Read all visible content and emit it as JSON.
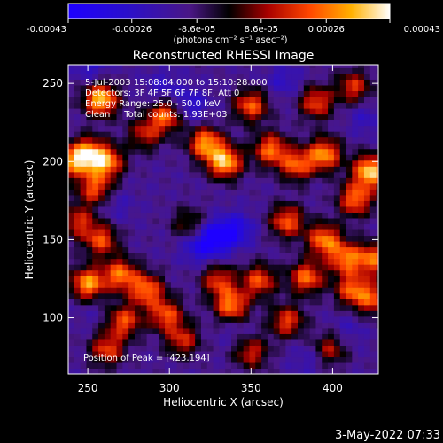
{
  "chart_data": {
    "type": "heatmap",
    "title": "Reconstructed RHESSI Image",
    "xlabel": "Heliocentric X (arcsec)",
    "ylabel": "Heliocentric Y (arcsec)",
    "xlim": [
      238,
      428
    ],
    "ylim": [
      64,
      262
    ],
    "xticks": [
      250,
      300,
      350,
      400
    ],
    "yticks": [
      100,
      150,
      200,
      250
    ],
    "colorbar": {
      "min": -0.00043,
      "max": 0.00043,
      "tick_values": [
        -0.00043,
        -0.00026,
        -8.6e-05,
        8.6e-05,
        0.00026,
        0.00043
      ],
      "tick_labels": [
        "-0.00043",
        "-0.00026",
        "-8.6e-05",
        "8.6e-05",
        "0.00026",
        "0.00043"
      ],
      "units": "(photons cm⁻² s⁻¹ asec⁻²)"
    },
    "annotations": [
      "5-Jul-2003 15:08:04.000 to 15:10:28.000",
      "Detectors: 3F 4F 5F 6F 7F 8F, Att 0",
      "Energy Range: 25.0 - 50.0 keV",
      "Clean     Total counts: 1.93E+03"
    ],
    "peak_label": "Position of Peak = [423,194]",
    "peak": [
      423,
      194
    ],
    "hotspots": [
      {
        "x": 258,
        "y": 240,
        "v": 0.00041
      },
      {
        "x": 250,
        "y": 205,
        "v": 0.00036
      },
      {
        "x": 262,
        "y": 200,
        "v": 0.0003
      },
      {
        "x": 254,
        "y": 183,
        "v": 0.00025
      },
      {
        "x": 240,
        "y": 200,
        "v": 0.00022
      },
      {
        "x": 298,
        "y": 230,
        "v": 0.0003
      },
      {
        "x": 285,
        "y": 218,
        "v": 0.00018
      },
      {
        "x": 350,
        "y": 236,
        "v": 0.00028
      },
      {
        "x": 390,
        "y": 238,
        "v": 0.00025
      },
      {
        "x": 413,
        "y": 248,
        "v": 0.00022
      },
      {
        "x": 334,
        "y": 200,
        "v": 0.0004
      },
      {
        "x": 322,
        "y": 212,
        "v": 0.00034
      },
      {
        "x": 362,
        "y": 208,
        "v": 0.0003
      },
      {
        "x": 378,
        "y": 198,
        "v": 0.00026
      },
      {
        "x": 395,
        "y": 205,
        "v": 0.00034
      },
      {
        "x": 423,
        "y": 194,
        "v": 0.00043
      },
      {
        "x": 414,
        "y": 176,
        "v": 0.0003
      },
      {
        "x": 372,
        "y": 162,
        "v": 0.00028
      },
      {
        "x": 395,
        "y": 150,
        "v": 0.00032
      },
      {
        "x": 408,
        "y": 138,
        "v": 0.00028
      },
      {
        "x": 258,
        "y": 150,
        "v": 0.00025
      },
      {
        "x": 244,
        "y": 162,
        "v": 0.0002
      },
      {
        "x": 270,
        "y": 128,
        "v": 0.0003
      },
      {
        "x": 250,
        "y": 122,
        "v": 0.00036
      },
      {
        "x": 286,
        "y": 118,
        "v": 0.0003
      },
      {
        "x": 272,
        "y": 98,
        "v": 0.00026
      },
      {
        "x": 298,
        "y": 102,
        "v": 0.00026
      },
      {
        "x": 262,
        "y": 80,
        "v": 0.00024
      },
      {
        "x": 308,
        "y": 86,
        "v": 0.0002
      },
      {
        "x": 338,
        "y": 108,
        "v": 0.00032
      },
      {
        "x": 330,
        "y": 124,
        "v": 0.00022
      },
      {
        "x": 355,
        "y": 124,
        "v": 0.00026
      },
      {
        "x": 372,
        "y": 98,
        "v": 0.00024
      },
      {
        "x": 384,
        "y": 126,
        "v": 0.0003
      },
      {
        "x": 412,
        "y": 118,
        "v": 0.00026
      },
      {
        "x": 425,
        "y": 138,
        "v": 0.00028
      },
      {
        "x": 425,
        "y": 112,
        "v": 0.00022
      },
      {
        "x": 398,
        "y": 80,
        "v": 0.00018
      },
      {
        "x": 350,
        "y": 78,
        "v": 0.0002
      },
      {
        "x": 312,
        "y": 160,
        "v": 0.00012
      }
    ],
    "coldspots": [
      {
        "x": 330,
        "y": 152,
        "v": -0.00038
      },
      {
        "x": 318,
        "y": 146,
        "v": -0.00028
      },
      {
        "x": 342,
        "y": 157,
        "v": -0.00026
      },
      {
        "x": 312,
        "y": 236,
        "v": -0.00026
      },
      {
        "x": 296,
        "y": 248,
        "v": -0.0002
      },
      {
        "x": 252,
        "y": 262,
        "v": -0.00022
      },
      {
        "x": 370,
        "y": 252,
        "v": -0.0002
      },
      {
        "x": 420,
        "y": 228,
        "v": -0.00018
      },
      {
        "x": 268,
        "y": 172,
        "v": -0.00016
      },
      {
        "x": 410,
        "y": 92,
        "v": -0.00016
      },
      {
        "x": 386,
        "y": 74,
        "v": -0.00018
      },
      {
        "x": 340,
        "y": 92,
        "v": -0.00014
      },
      {
        "x": 252,
        "y": 104,
        "v": -0.00012
      }
    ]
  },
  "footer": {
    "timestamp": "3-May-2022 07:33"
  }
}
